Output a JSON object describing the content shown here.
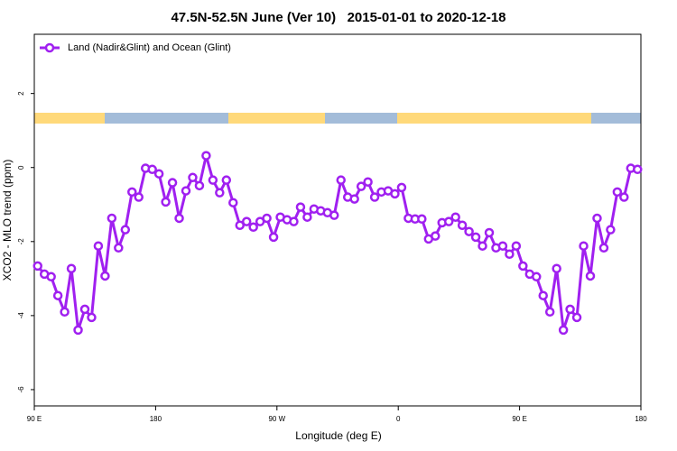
{
  "chart_data": {
    "type": "line",
    "title": "47.5N-52.5N June (Ver 10)   2015-01-01 to 2020-12-18",
    "xlabel": "Longitude (deg E)",
    "ylabel": "XCO2 - MLO trend (ppm)",
    "xlim": [
      90,
      540
    ],
    "xticks": [
      {
        "value": 90,
        "label": "90 E"
      },
      {
        "value": 180,
        "label": "180"
      },
      {
        "value": 270,
        "label": "90 W"
      },
      {
        "value": 360,
        "label": "0"
      },
      {
        "value": 450,
        "label": "90 E"
      },
      {
        "value": 540,
        "label": "180"
      }
    ],
    "ylim": [
      -6.44,
      3.6
    ],
    "yticks": [
      2,
      0,
      -2,
      -4,
      -6
    ],
    "grid": false,
    "legend": "top-left",
    "x": [
      92.5,
      97.5,
      102.5,
      107.5,
      112.5,
      117.5,
      122.5,
      127.5,
      132.5,
      137.5,
      142.5,
      147.5,
      152.5,
      157.5,
      162.5,
      167.5,
      172.5,
      177.5,
      182.5,
      187.5,
      192.5,
      197.5,
      202.5,
      207.5,
      212.5,
      217.5,
      222.5,
      227.5,
      232.5,
      237.5,
      242.5,
      247.5,
      252.5,
      257.5,
      262.5,
      267.5,
      272.5,
      277.5,
      282.5,
      287.5,
      292.5,
      297.5,
      302.5,
      307.5,
      312.5,
      317.5,
      322.5,
      327.5,
      332.5,
      337.5,
      342.5,
      347.5,
      352.5,
      357.5,
      362.5,
      367.5,
      372.5,
      377.5,
      382.5,
      387.5,
      392.5,
      397.5,
      402.5,
      407.5,
      412.5,
      417.5,
      422.5,
      427.5,
      432.5,
      437.5,
      442.5,
      447.5,
      452.5,
      457.5,
      462.5,
      467.5,
      472.5,
      477.5,
      482.5,
      487.5,
      492.5,
      497.5,
      502.5,
      507.5,
      512.5,
      517.5,
      522.5,
      527.5,
      532.5,
      537.5
    ],
    "series": [
      {
        "name": "Land (Nadir&Glint) and Ocean (Glint)",
        "color": "#a020f0",
        "values": [
          -2.66,
          -2.88,
          -2.95,
          -3.46,
          -3.9,
          -2.73,
          -4.39,
          -3.83,
          -4.05,
          -2.12,
          -2.93,
          -1.37,
          -2.17,
          -1.68,
          -0.66,
          -0.8,
          -0.02,
          -0.05,
          -0.17,
          -0.93,
          -0.41,
          -1.37,
          -0.63,
          -0.27,
          -0.49,
          0.32,
          -0.34,
          -0.68,
          -0.34,
          -0.95,
          -1.56,
          -1.46,
          -1.61,
          -1.46,
          -1.37,
          -1.88,
          -1.34,
          -1.41,
          -1.46,
          -1.07,
          -1.34,
          -1.12,
          -1.17,
          -1.22,
          -1.29,
          -0.34,
          -0.8,
          -0.85,
          -0.51,
          -0.39,
          -0.8,
          -0.66,
          -0.63,
          -0.71,
          -0.54,
          -1.37,
          -1.39,
          -1.39,
          -1.93,
          -1.85,
          -1.49,
          -1.46,
          -1.34,
          -1.56,
          -1.73,
          -1.88,
          -2.12,
          -1.76,
          -2.17,
          -2.12,
          -2.34,
          -2.12,
          -2.66,
          -2.88,
          -2.95,
          -3.46,
          -3.9,
          -2.73,
          -4.39,
          -3.83,
          -4.05,
          -2.12,
          -2.93,
          -1.37,
          -2.17,
          -1.68,
          -0.66,
          -0.8,
          -0.02,
          -0.05
        ]
      }
    ]
  }
}
